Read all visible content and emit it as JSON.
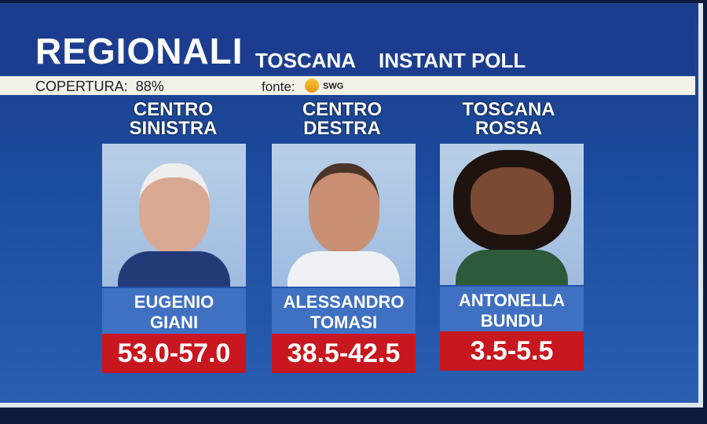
{
  "header": {
    "title": "REGIONALI",
    "region": "TOSCANA",
    "subtitle": "INSTANT POLL"
  },
  "info": {
    "coverage": "COPERTURA:  88%",
    "source_label": "fonte:",
    "source": "SWG"
  },
  "candidates": [
    {
      "coalition": "CENTRO SINISTRA",
      "first": "EUGENIO",
      "last": "GIANI",
      "range": "53.0-57.0"
    },
    {
      "coalition": "CENTRO DESTRA",
      "first": "ALESSANDRO",
      "last": "TOMASI",
      "range": "38.5-42.5"
    },
    {
      "coalition": "TOSCANA ROSSA",
      "first": "ANTONELLA",
      "last": "BUNDU",
      "range": "3.5-5.5"
    }
  ],
  "colors": {
    "background": "#1d3e8a",
    "name_box": "#3f70c2",
    "range_box": "#c8171e"
  }
}
